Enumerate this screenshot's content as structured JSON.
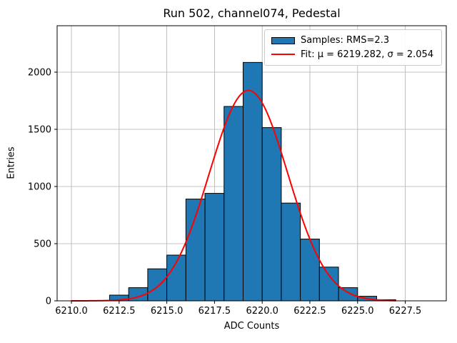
{
  "chart_data": {
    "type": "bar",
    "subtype": "histogram-with-gaussian-fit",
    "title": "Run 502, channel074, Pedestal",
    "xlabel": "ADC Counts",
    "ylabel": "Entries",
    "bin_edges": [
      6212,
      6213,
      6214,
      6215,
      6216,
      6217,
      6218,
      6219,
      6220,
      6221,
      6222,
      6223,
      6224,
      6225,
      6226,
      6227
    ],
    "values": [
      50,
      115,
      280,
      400,
      890,
      940,
      1700,
      2085,
      1515,
      855,
      540,
      295,
      115,
      40,
      10
    ],
    "xticks": [
      6210.0,
      6212.5,
      6215.0,
      6217.5,
      6220.0,
      6222.5,
      6225.0,
      6227.5
    ],
    "xtick_labels": [
      "6210.0",
      "6212.5",
      "6215.0",
      "6217.5",
      "6220.0",
      "6222.5",
      "6225.0",
      "6227.5"
    ],
    "yticks": [
      0,
      500,
      1000,
      1500,
      2000
    ],
    "ytick_labels": [
      "0",
      "500",
      "1000",
      "1500",
      "2000"
    ],
    "xlim": [
      6209.25,
      6229.65
    ],
    "ylim": [
      0,
      2406
    ],
    "grid": true,
    "legend_position": "upper right",
    "legend": [
      "Samples: RMS=2.3",
      "Fit: μ = 6219.282, σ = 2.054"
    ],
    "fit": {
      "type": "gaussian",
      "mu": 6219.282,
      "sigma": 2.054,
      "amplitude": 1840,
      "range": [
        6210,
        6227
      ]
    },
    "colors": {
      "bar": "#1f77b4",
      "bar_edge": "#000000",
      "fit": "#ff0000",
      "grid": "#b0b0b0",
      "axes": "#000000",
      "legend_border": "#cccccc"
    }
  }
}
